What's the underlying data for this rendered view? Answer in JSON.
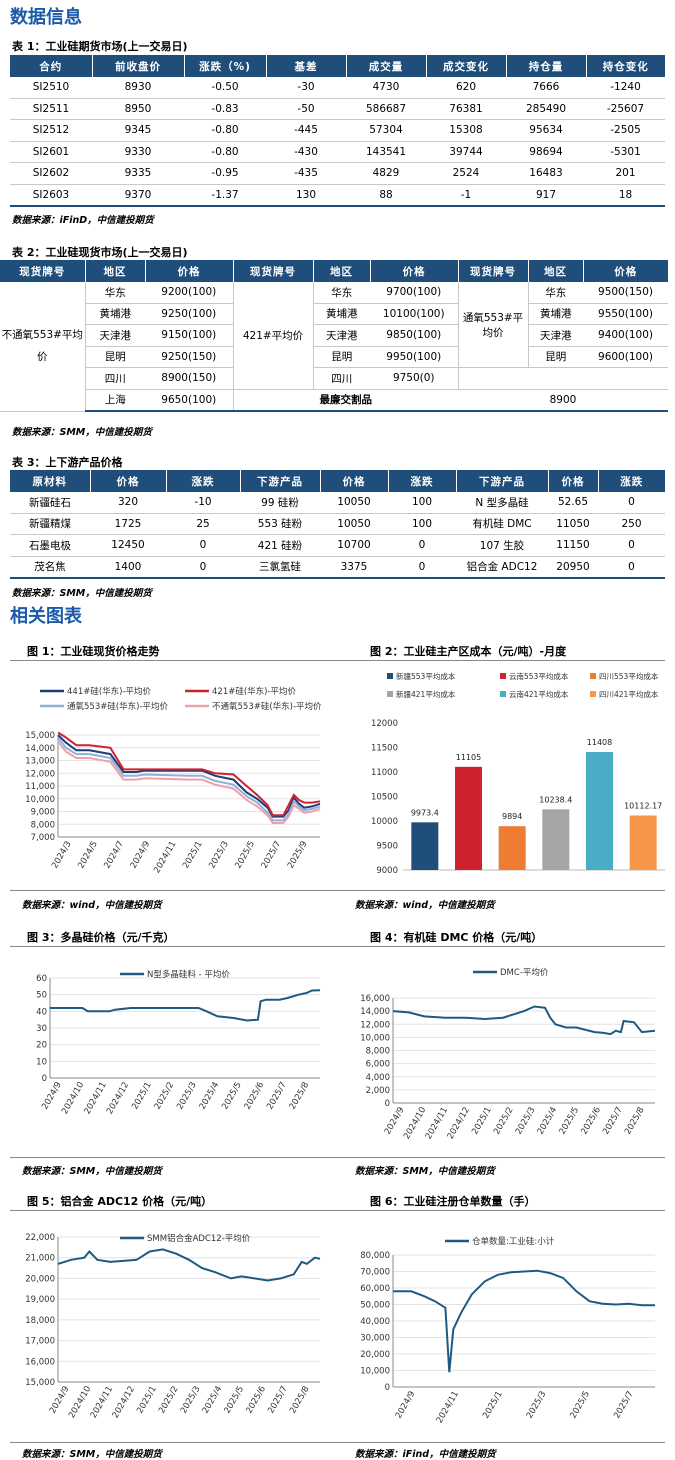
{
  "section1_title": "数据信息",
  "table1": {
    "title": "表 1：工业硅期货市场(上一交易日)",
    "headers": [
      "合约",
      "前收盘价",
      "涨跌（%)",
      "基差",
      "成交量",
      "成交变化",
      "持仓量",
      "持仓变化"
    ],
    "rows": [
      [
        "SI2510",
        "8930",
        "-0.50",
        "-30",
        "4730",
        "620",
        "7666",
        "-1240"
      ],
      [
        "SI2511",
        "8950",
        "-0.83",
        "-50",
        "586687",
        "76381",
        "285490",
        "-25607"
      ],
      [
        "SI2512",
        "9345",
        "-0.80",
        "-445",
        "57304",
        "15308",
        "95634",
        "-2505"
      ],
      [
        "SI2601",
        "9330",
        "-0.80",
        "-430",
        "143541",
        "39744",
        "98694",
        "-5301"
      ],
      [
        "SI2602",
        "9335",
        "-0.95",
        "-435",
        "4829",
        "2524",
        "16483",
        "201"
      ],
      [
        "SI2603",
        "9370",
        "-1.37",
        "130",
        "88",
        "-1",
        "917",
        "18"
      ]
    ],
    "source": "数据来源：iFinD，中信建投期货"
  },
  "table2": {
    "title": "表 2：工业硅现货市场(上一交易日)",
    "headers": [
      "现货牌号",
      "地区",
      "价格",
      "现货牌号",
      "地区",
      "价格",
      "现货牌号",
      "地区",
      "价格"
    ],
    "group1": {
      "grade": "不通氧553#平均价",
      "rows": [
        [
          "华东",
          "9200(100)"
        ],
        [
          "黄埔港",
          "9250(100)"
        ],
        [
          "天津港",
          "9150(100)"
        ],
        [
          "昆明",
          "9250(150)"
        ],
        [
          "四川",
          "8900(150)"
        ],
        [
          "上海",
          "9650(100)"
        ]
      ]
    },
    "group2": {
      "grade": "421#平均价",
      "rows": [
        [
          "华东",
          "9700(100)"
        ],
        [
          "黄埔港",
          "10100(100)"
        ],
        [
          "天津港",
          "9850(100)"
        ],
        [
          "昆明",
          "9950(100)"
        ],
        [
          "四川",
          "9750(0)"
        ]
      ]
    },
    "group3": {
      "grade": "通氧553#平均价",
      "rows": [
        [
          "华东",
          "9500(150)"
        ],
        [
          "黄埔港",
          "9550(100)"
        ],
        [
          "天津港",
          "9400(100)"
        ],
        [
          "昆明",
          "9600(100)"
        ]
      ]
    },
    "cheapest_label": "最廉交割品",
    "cheapest_value": "8900",
    "source": "数据来源：SMM，中信建投期货"
  },
  "table3": {
    "title": "表 3：上下游产品价格",
    "headers": [
      "原材料",
      "价格",
      "涨跌",
      "下游产品",
      "价格",
      "涨跌",
      "下游产品",
      "价格",
      "涨跌"
    ],
    "rows": [
      [
        "新疆硅石",
        "320",
        "-10",
        "99 硅粉",
        "10050",
        "100",
        "N 型多晶硅",
        "52.65",
        "0"
      ],
      [
        "新疆精煤",
        "1725",
        "25",
        "553 硅粉",
        "10050",
        "100",
        "有机硅 DMC",
        "11050",
        "250"
      ],
      [
        "石墨电极",
        "12450",
        "0",
        "421 硅粉",
        "10700",
        "0",
        "107 生胶",
        "11150",
        "0"
      ],
      [
        "茂名焦",
        "1400",
        "0",
        "三氯氢硅",
        "3375",
        "0",
        "铝合金 ADC12",
        "20950",
        "0"
      ]
    ],
    "source": "数据来源：SMM，中信建投期货"
  },
  "section2_title": "相关图表",
  "fig1": {
    "title": "图 1：工业硅现货价格走势",
    "source": "数据来源：wind，中信建投期货"
  },
  "fig2": {
    "title": "图 2：工业硅主产区成本（元/吨）-月度",
    "source": "数据来源：wind，中信建投期货"
  },
  "fig3": {
    "title": "图 3：多晶硅价格（元/千克）",
    "source": "数据来源：SMM，中信建投期货"
  },
  "fig4": {
    "title": "图 4：有机硅 DMC 价格（元/吨）",
    "source": "数据来源：SMM，中信建投期货"
  },
  "fig5": {
    "title": "图 5：铝合金 ADC12 价格（元/吨）",
    "source": "数据来源：SMM，中信建投期货"
  },
  "fig6": {
    "title": "图 6：工业硅注册仓单数量（手）",
    "source": "数据来源：iFind，中信建投期货"
  },
  "chart_data": [
    {
      "type": "line",
      "ylim": [
        7000,
        15000
      ],
      "yticks": [
        "15,000",
        "14,000",
        "13,000",
        "12,000",
        "11,000",
        "10,000",
        "9,000",
        "8,000",
        "7,000"
      ],
      "xticks": [
        "2024/3",
        "2024/5",
        "2024/7",
        "2024/9",
        "2024/11",
        "2025/1",
        "2025/3",
        "2025/5",
        "2025/7",
        "2025/9"
      ],
      "x": [
        0,
        0.03,
        0.07,
        0.12,
        0.2,
        0.25,
        0.3,
        0.33,
        0.5,
        0.55,
        0.6,
        0.67,
        0.72,
        0.76,
        0.8,
        0.82,
        0.84,
        0.86,
        0.88,
        0.9,
        0.92,
        0.94,
        0.97,
        1
      ],
      "series": [
        {
          "name": "441#硅(华东)-平均价",
          "color": "#1f3c7a",
          "values": [
            15000,
            14400,
            13800,
            13800,
            13500,
            12100,
            12100,
            12200,
            12200,
            12200,
            11800,
            11500,
            10500,
            10000,
            9300,
            8600,
            8600,
            8600,
            9100,
            10100,
            9600,
            9300,
            9400,
            9600
          ]
        },
        {
          "name": "421#硅(华东)-平均价",
          "color": "#d0222e",
          "values": [
            15200,
            14800,
            14200,
            14200,
            14000,
            12300,
            12300,
            12300,
            12300,
            12300,
            12000,
            11900,
            11000,
            10300,
            9500,
            8700,
            8700,
            8700,
            9500,
            10300,
            9900,
            9700,
            9700,
            9800
          ]
        },
        {
          "name": "通氧553#硅(华东)-平均价",
          "color": "#8fb0d8",
          "values": [
            14800,
            14000,
            13500,
            13500,
            13200,
            11800,
            11800,
            11900,
            11800,
            11800,
            11400,
            11100,
            10200,
            9700,
            8900,
            8300,
            8300,
            8300,
            8800,
            9800,
            9400,
            9100,
            9200,
            9400
          ]
        },
        {
          "name": "不通氧553#硅(华东)-平均价",
          "color": "#f0a0a8",
          "values": [
            14500,
            13700,
            13200,
            13200,
            12900,
            11500,
            11500,
            11600,
            11500,
            11500,
            11100,
            10800,
            9900,
            9400,
            8700,
            8100,
            8100,
            8100,
            8600,
            9500,
            9200,
            8900,
            9000,
            9200
          ]
        }
      ]
    },
    {
      "type": "bar",
      "ylim": [
        9000,
        12000
      ],
      "yticks": [
        "12000",
        "11500",
        "11000",
        "10500",
        "10000",
        "9500",
        "9000"
      ],
      "categories": [
        "新疆553平均成本",
        "云南553平均成本",
        "四川553平均成本",
        "新疆421平均成本",
        "云南421平均成本",
        "四川421平均成本"
      ],
      "values": [
        9973.4,
        11105,
        9894,
        10238.4,
        11408,
        10112.17
      ],
      "labels": [
        "9973.4",
        "11105",
        "9894",
        "10238.4",
        "11408",
        "10112.17"
      ],
      "colors": [
        "#1f4e7a",
        "#d0222e",
        "#ee7d31",
        "#a5a5a5",
        "#4bacc6",
        "#f79646"
      ]
    },
    {
      "type": "line",
      "ylim": [
        0,
        60
      ],
      "yticks": [
        "60",
        "50",
        "40",
        "30",
        "20",
        "10",
        "0"
      ],
      "xticks": [
        "2024/9",
        "2024/10",
        "2024/11",
        "2024/12",
        "2025/1",
        "2025/2",
        "2025/3",
        "2025/4",
        "2025/5",
        "2025/6",
        "2025/7",
        "2025/8"
      ],
      "x": [
        0,
        0.12,
        0.14,
        0.22,
        0.24,
        0.3,
        0.55,
        0.58,
        0.62,
        0.68,
        0.73,
        0.77,
        0.78,
        0.8,
        0.85,
        0.88,
        0.92,
        0.95,
        0.97,
        1
      ],
      "series": [
        {
          "name": "N型多晶硅料 - 平均价",
          "color": "#1f5a82",
          "values": [
            42,
            42,
            40,
            40,
            41,
            42,
            42,
            40,
            37,
            36,
            34.5,
            35,
            46,
            47,
            47,
            48,
            50,
            51,
            52.5,
            52.7
          ]
        }
      ]
    },
    {
      "type": "line",
      "ylim": [
        0,
        16000
      ],
      "yticks": [
        "16,000",
        "14,000",
        "12,000",
        "10,000",
        "8,000",
        "6,000",
        "4,000",
        "2,000",
        "0"
      ],
      "xticks": [
        "2024/9",
        "2024/10",
        "2024/11",
        "2024/12",
        "2025/1",
        "2025/2",
        "2025/3",
        "2025/4",
        "2025/5",
        "2025/6",
        "2025/7",
        "2025/8"
      ],
      "x": [
        0,
        0.06,
        0.12,
        0.2,
        0.28,
        0.35,
        0.42,
        0.5,
        0.54,
        0.58,
        0.6,
        0.62,
        0.66,
        0.7,
        0.73,
        0.77,
        0.8,
        0.83,
        0.85,
        0.87,
        0.88,
        0.92,
        0.95,
        1
      ],
      "series": [
        {
          "name": "DMC-平均价",
          "color": "#1f5a82",
          "values": [
            14000,
            13800,
            13200,
            13000,
            13000,
            12800,
            13000,
            14000,
            14700,
            14500,
            13000,
            12000,
            11500,
            11500,
            11200,
            10800,
            10700,
            10500,
            11000,
            10800,
            12500,
            12300,
            10800,
            11000
          ]
        }
      ]
    },
    {
      "type": "line",
      "ylim": [
        15000,
        22000
      ],
      "yticks": [
        "22,000",
        "21,000",
        "20,000",
        "19,000",
        "18,000",
        "17,000",
        "16,000",
        "15,000"
      ],
      "xticks": [
        "2024/9",
        "2024/10",
        "2024/11",
        "2024/12",
        "2025/1",
        "2025/2",
        "2025/3",
        "2025/4",
        "2025/5",
        "2025/6",
        "2025/7",
        "2025/8"
      ],
      "x": [
        0,
        0.05,
        0.1,
        0.12,
        0.15,
        0.2,
        0.3,
        0.35,
        0.4,
        0.45,
        0.5,
        0.55,
        0.6,
        0.66,
        0.7,
        0.75,
        0.8,
        0.85,
        0.9,
        0.93,
        0.95,
        0.98,
        1
      ],
      "series": [
        {
          "name": "SMM铝合金ADC12-平均价",
          "color": "#1f5a82",
          "values": [
            20700,
            20900,
            21000,
            21300,
            20900,
            20800,
            20900,
            21300,
            21400,
            21200,
            20900,
            20500,
            20300,
            20000,
            20100,
            20000,
            19900,
            20000,
            20200,
            20800,
            20700,
            21000,
            20950
          ]
        }
      ]
    },
    {
      "type": "line",
      "ylim": [
        0,
        80000
      ],
      "yticks": [
        "80,000",
        "70,000",
        "60,000",
        "50,000",
        "40,000",
        "30,000",
        "20,000",
        "10,000",
        "0"
      ],
      "xticks": [
        "2024/9",
        "2024/11",
        "2025/1",
        "2025/3",
        "2025/5",
        "2025/7"
      ],
      "x": [
        0,
        0.07,
        0.12,
        0.16,
        0.2,
        0.215,
        0.23,
        0.26,
        0.3,
        0.35,
        0.4,
        0.45,
        0.5,
        0.55,
        0.6,
        0.65,
        0.7,
        0.75,
        0.8,
        0.85,
        0.9,
        0.95,
        1
      ],
      "series": [
        {
          "name": "仓单数量:工业硅:小计",
          "color": "#1f5a82",
          "values": [
            58000,
            58000,
            55000,
            52000,
            48000,
            9000,
            35000,
            45000,
            56000,
            64000,
            68000,
            69500,
            70000,
            70500,
            69000,
            66000,
            58000,
            52000,
            50500,
            50000,
            50500,
            49500,
            49500
          ]
        }
      ]
    }
  ]
}
